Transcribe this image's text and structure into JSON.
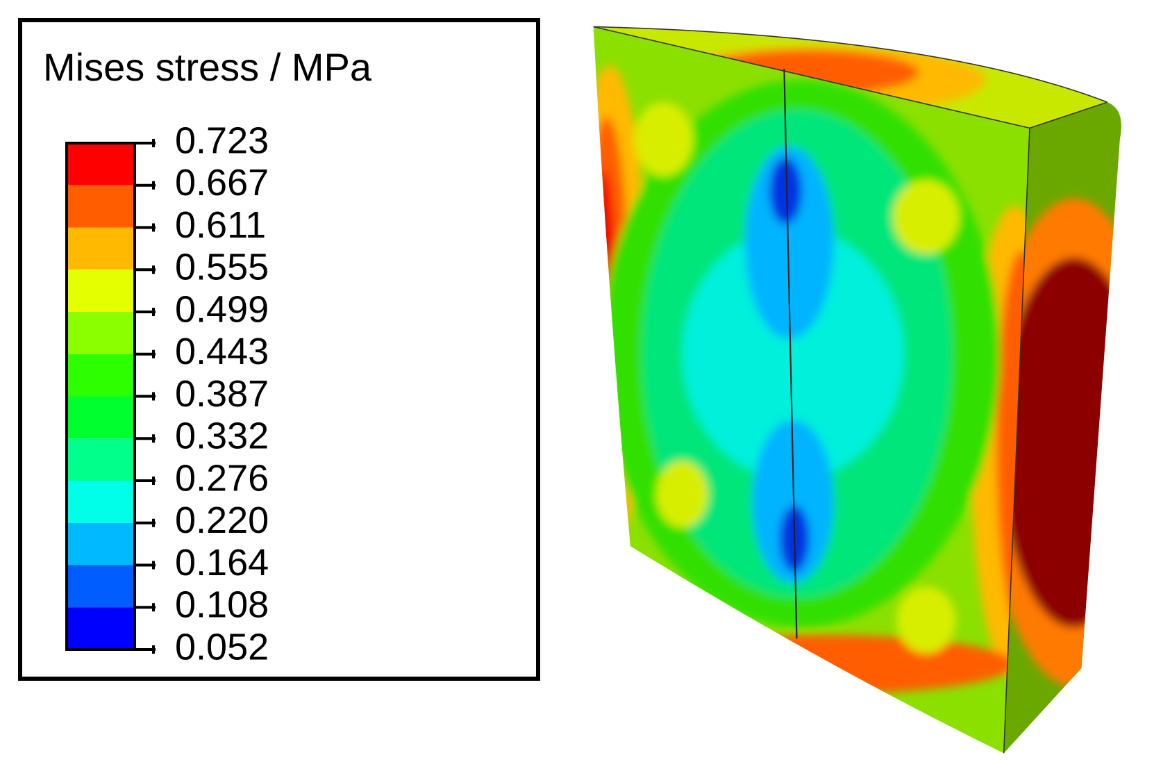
{
  "legend": {
    "title": "Mises stress / MPa",
    "levels": [
      "0.723",
      "0.667",
      "0.611",
      "0.555",
      "0.499",
      "0.443",
      "0.387",
      "0.332",
      "0.276",
      "0.220",
      "0.164",
      "0.108",
      "0.052"
    ],
    "colors": [
      "#ff0000",
      "#ff5d00",
      "#ffb900",
      "#e3ff00",
      "#8bff00",
      "#2eff00",
      "#00ff2e",
      "#00ff8b",
      "#00ffe8",
      "#00b9ff",
      "#005dff",
      "#0000ff"
    ]
  }
}
